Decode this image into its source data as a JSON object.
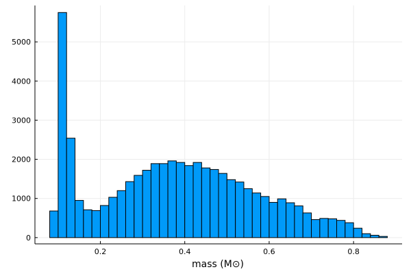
{
  "chart_data": {
    "type": "bar",
    "subtype": "histogram",
    "xlabel": "mass (M⊙)",
    "ylabel": "",
    "title": "",
    "bin_width": 0.02,
    "bin_start": 0.08,
    "bins": [
      {
        "x0": 0.08,
        "x1": 0.1,
        "count": 680
      },
      {
        "x0": 0.1,
        "x1": 0.12,
        "count": 5750
      },
      {
        "x0": 0.12,
        "x1": 0.14,
        "count": 2540
      },
      {
        "x0": 0.14,
        "x1": 0.16,
        "count": 950
      },
      {
        "x0": 0.16,
        "x1": 0.18,
        "count": 710
      },
      {
        "x0": 0.18,
        "x1": 0.2,
        "count": 690
      },
      {
        "x0": 0.2,
        "x1": 0.22,
        "count": 820
      },
      {
        "x0": 0.22,
        "x1": 0.24,
        "count": 1030
      },
      {
        "x0": 0.24,
        "x1": 0.26,
        "count": 1200
      },
      {
        "x0": 0.26,
        "x1": 0.28,
        "count": 1430
      },
      {
        "x0": 0.28,
        "x1": 0.3,
        "count": 1590
      },
      {
        "x0": 0.3,
        "x1": 0.32,
        "count": 1720
      },
      {
        "x0": 0.32,
        "x1": 0.34,
        "count": 1890
      },
      {
        "x0": 0.34,
        "x1": 0.36,
        "count": 1890
      },
      {
        "x0": 0.36,
        "x1": 0.38,
        "count": 1960
      },
      {
        "x0": 0.38,
        "x1": 0.4,
        "count": 1920
      },
      {
        "x0": 0.4,
        "x1": 0.42,
        "count": 1840
      },
      {
        "x0": 0.42,
        "x1": 0.44,
        "count": 1920
      },
      {
        "x0": 0.44,
        "x1": 0.46,
        "count": 1780
      },
      {
        "x0": 0.46,
        "x1": 0.48,
        "count": 1740
      },
      {
        "x0": 0.48,
        "x1": 0.5,
        "count": 1640
      },
      {
        "x0": 0.5,
        "x1": 0.52,
        "count": 1480
      },
      {
        "x0": 0.52,
        "x1": 0.54,
        "count": 1420
      },
      {
        "x0": 0.54,
        "x1": 0.56,
        "count": 1250
      },
      {
        "x0": 0.56,
        "x1": 0.58,
        "count": 1140
      },
      {
        "x0": 0.58,
        "x1": 0.6,
        "count": 1050
      },
      {
        "x0": 0.6,
        "x1": 0.62,
        "count": 900
      },
      {
        "x0": 0.62,
        "x1": 0.64,
        "count": 990
      },
      {
        "x0": 0.64,
        "x1": 0.66,
        "count": 890
      },
      {
        "x0": 0.66,
        "x1": 0.68,
        "count": 810
      },
      {
        "x0": 0.68,
        "x1": 0.7,
        "count": 630
      },
      {
        "x0": 0.7,
        "x1": 0.72,
        "count": 460
      },
      {
        "x0": 0.72,
        "x1": 0.74,
        "count": 490
      },
      {
        "x0": 0.74,
        "x1": 0.76,
        "count": 480
      },
      {
        "x0": 0.76,
        "x1": 0.78,
        "count": 440
      },
      {
        "x0": 0.78,
        "x1": 0.8,
        "count": 380
      },
      {
        "x0": 0.8,
        "x1": 0.82,
        "count": 240
      },
      {
        "x0": 0.82,
        "x1": 0.84,
        "count": 100
      },
      {
        "x0": 0.84,
        "x1": 0.86,
        "count": 60
      },
      {
        "x0": 0.86,
        "x1": 0.88,
        "count": 30
      }
    ],
    "xlim": [
      0.045,
      0.915
    ],
    "ylim": [
      -160,
      5930
    ],
    "xticks": [
      0.2,
      0.4,
      0.6,
      0.8
    ],
    "xtick_labels": [
      "0.2",
      "0.4",
      "0.6",
      "0.8"
    ],
    "yticks": [
      0,
      1000,
      2000,
      3000,
      4000,
      5000
    ],
    "ytick_labels": [
      "0",
      "1000",
      "2000",
      "3000",
      "4000",
      "5000"
    ],
    "grid": true,
    "legend": "none",
    "colors": {
      "bar_fill": "#009af9",
      "bar_stroke": "#000000",
      "grid": "#ececec",
      "axis": "#000000"
    }
  }
}
